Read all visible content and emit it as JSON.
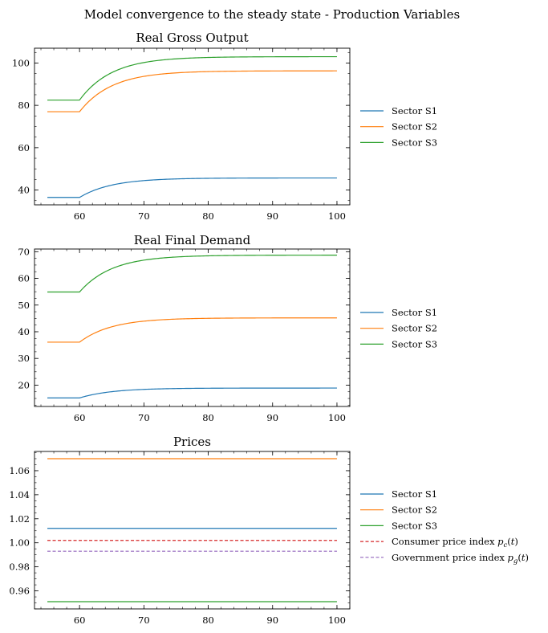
{
  "figure": {
    "suptitle": "Model convergence to the steady state - Production Variables"
  },
  "colors": {
    "s1": "#1f77b4",
    "s2": "#ff7f0e",
    "s3": "#2ca02c",
    "cpi": "#d62728",
    "gpi": "#9467bd"
  },
  "chart_data": [
    {
      "type": "line",
      "title": "Real Gross Output",
      "xlim": [
        53,
        102
      ],
      "ylim": [
        33,
        107
      ],
      "xticks": [
        60,
        70,
        80,
        90,
        100
      ],
      "yticks": [
        40,
        60,
        80,
        100
      ],
      "legend_position": "right",
      "shock_x": 60,
      "series": [
        {
          "name": "Sector S1",
          "color_key": "s1",
          "style": "solid",
          "start_x": 55,
          "end_x": 100,
          "initial": 36.5,
          "steady": 45.7,
          "tau": 5
        },
        {
          "name": "Sector S2",
          "color_key": "s2",
          "style": "solid",
          "start_x": 55,
          "end_x": 100,
          "initial": 77.0,
          "steady": 96.3,
          "tau": 5
        },
        {
          "name": "Sector S3",
          "color_key": "s3",
          "style": "solid",
          "start_x": 55,
          "end_x": 100,
          "initial": 82.5,
          "steady": 103.0,
          "tau": 5
        }
      ]
    },
    {
      "type": "line",
      "title": "Real Final Demand",
      "xlim": [
        53,
        102
      ],
      "ylim": [
        12,
        71
      ],
      "xticks": [
        60,
        70,
        80,
        90,
        100
      ],
      "yticks": [
        20,
        30,
        40,
        50,
        60,
        70
      ],
      "legend_position": "right",
      "shock_x": 60,
      "series": [
        {
          "name": "Sector S1",
          "color_key": "s1",
          "style": "solid",
          "start_x": 55,
          "end_x": 100,
          "initial": 15.2,
          "steady": 18.9,
          "tau": 5
        },
        {
          "name": "Sector S2",
          "color_key": "s2",
          "style": "solid",
          "start_x": 55,
          "end_x": 100,
          "initial": 36.1,
          "steady": 45.2,
          "tau": 5
        },
        {
          "name": "Sector S3",
          "color_key": "s3",
          "style": "solid",
          "start_x": 55,
          "end_x": 100,
          "initial": 54.9,
          "steady": 68.7,
          "tau": 5
        }
      ]
    },
    {
      "type": "line",
      "title": "Prices",
      "xlim": [
        53,
        102
      ],
      "ylim": [
        0.945,
        1.076
      ],
      "xticks": [
        60,
        70,
        80,
        90,
        100
      ],
      "yticks": [
        0.96,
        0.98,
        1.0,
        1.02,
        1.04,
        1.06
      ],
      "ytick_labels": [
        "0.96",
        "0.98",
        "1.00",
        "1.02",
        "1.04",
        "1.06"
      ],
      "legend_position": "right",
      "shock_x": 60,
      "series": [
        {
          "name": "Sector S1",
          "color_key": "s1",
          "style": "solid",
          "start_x": 55,
          "end_x": 100,
          "initial": 1.012,
          "steady": 1.012,
          "tau": 5
        },
        {
          "name": "Sector S2",
          "color_key": "s2",
          "style": "solid",
          "start_x": 55,
          "end_x": 100,
          "initial": 1.07,
          "steady": 1.07,
          "tau": 5
        },
        {
          "name": "Sector S3",
          "color_key": "s3",
          "style": "solid",
          "start_x": 55,
          "end_x": 100,
          "initial": 0.951,
          "steady": 0.951,
          "tau": 5
        },
        {
          "name": "Consumer price index",
          "math": "p_c(t)",
          "color_key": "cpi",
          "style": "dashed",
          "start_x": 55,
          "end_x": 100,
          "initial": 1.002,
          "steady": 1.002,
          "tau": 5
        },
        {
          "name": "Government price index",
          "math": "p_g(t)",
          "color_key": "gpi",
          "style": "dashed",
          "start_x": 55,
          "end_x": 100,
          "initial": 0.993,
          "steady": 0.993,
          "tau": 5
        }
      ]
    }
  ]
}
